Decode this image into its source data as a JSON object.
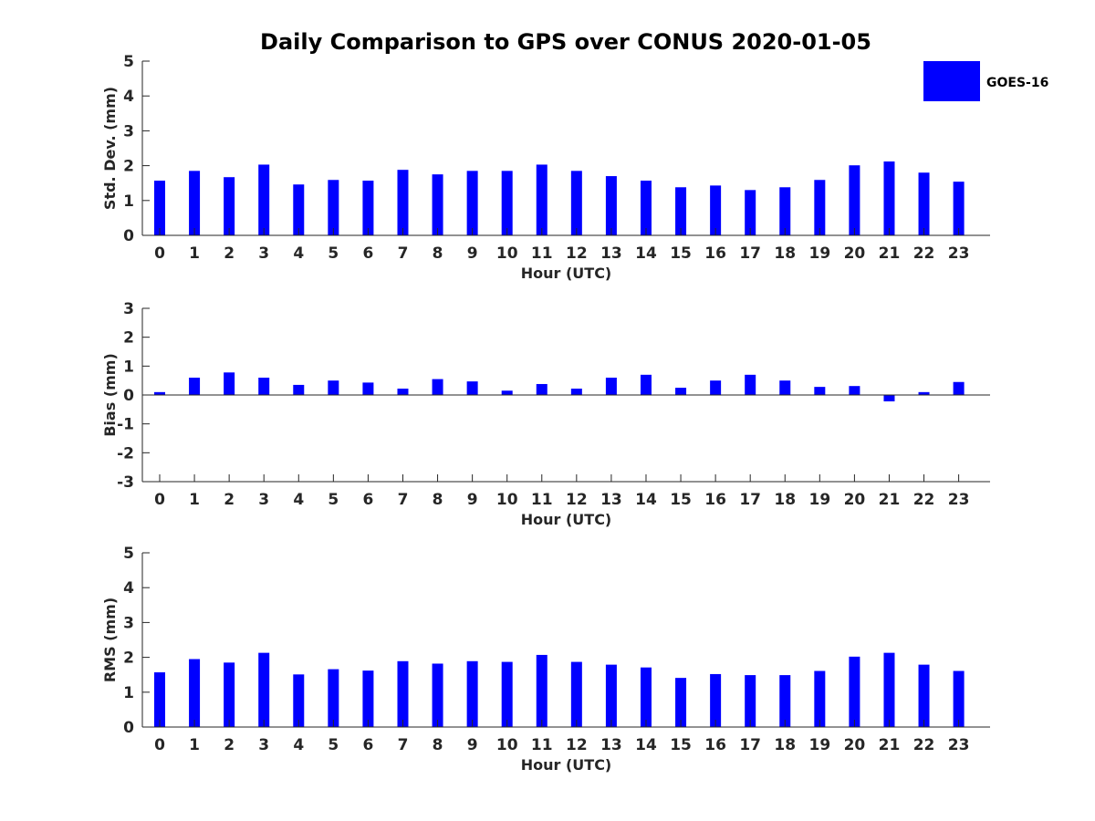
{
  "chart_data": {
    "title": "Daily Comparison to GPS over CONUS 2020-01-05",
    "legend": {
      "label": "GOES-16",
      "color": "#0000FF",
      "placement": "top-right"
    },
    "panels": [
      {
        "type": "bar",
        "series_name": "GOES-16",
        "ylabel": "Std. Dev. (mm)",
        "xlabel": "Hour (UTC)",
        "ylim": [
          0,
          5
        ],
        "yticks": [
          0,
          1,
          2,
          3,
          4,
          5
        ],
        "categories": [
          0,
          1,
          2,
          3,
          4,
          5,
          6,
          7,
          8,
          9,
          10,
          11,
          12,
          13,
          14,
          15,
          16,
          17,
          18,
          19,
          20,
          21,
          22,
          23
        ],
        "values": [
          1.57,
          1.85,
          1.67,
          2.03,
          1.46,
          1.59,
          1.57,
          1.88,
          1.75,
          1.85,
          1.85,
          2.03,
          1.85,
          1.7,
          1.57,
          1.38,
          1.43,
          1.3,
          1.38,
          1.59,
          2.01,
          2.12,
          1.8,
          1.54
        ]
      },
      {
        "type": "bar",
        "series_name": "GOES-16",
        "ylabel": "Bias (mm)",
        "xlabel": "Hour (UTC)",
        "ylim": [
          -3,
          3
        ],
        "yticks": [
          -3,
          -2,
          -1,
          0,
          1,
          2,
          3
        ],
        "categories": [
          0,
          1,
          2,
          3,
          4,
          5,
          6,
          7,
          8,
          9,
          10,
          11,
          12,
          13,
          14,
          15,
          16,
          17,
          18,
          19,
          20,
          21,
          22,
          23
        ],
        "values": [
          0.1,
          0.6,
          0.78,
          0.6,
          0.35,
          0.5,
          0.43,
          0.22,
          0.55,
          0.47,
          0.15,
          0.38,
          0.22,
          0.6,
          0.7,
          0.25,
          0.5,
          0.7,
          0.5,
          0.28,
          0.31,
          -0.22,
          0.1,
          0.45
        ]
      },
      {
        "type": "bar",
        "series_name": "GOES-16",
        "ylabel": "RMS (mm)",
        "xlabel": "Hour (UTC)",
        "ylim": [
          0,
          5
        ],
        "yticks": [
          0,
          1,
          2,
          3,
          4,
          5
        ],
        "categories": [
          0,
          1,
          2,
          3,
          4,
          5,
          6,
          7,
          8,
          9,
          10,
          11,
          12,
          13,
          14,
          15,
          16,
          17,
          18,
          19,
          20,
          21,
          22,
          23
        ],
        "values": [
          1.57,
          1.95,
          1.85,
          2.13,
          1.51,
          1.66,
          1.62,
          1.89,
          1.82,
          1.89,
          1.87,
          2.07,
          1.87,
          1.79,
          1.71,
          1.41,
          1.52,
          1.49,
          1.49,
          1.61,
          2.02,
          2.13,
          1.79,
          1.61
        ]
      }
    ]
  }
}
